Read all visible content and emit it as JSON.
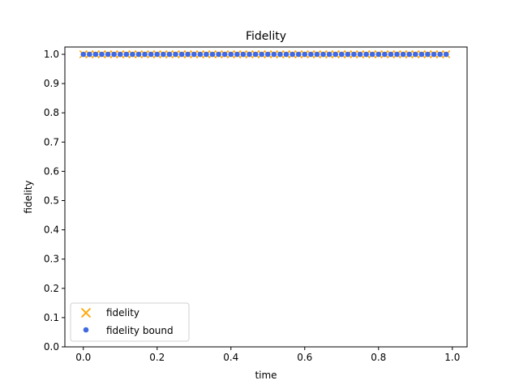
{
  "chart_data": {
    "type": "scatter",
    "title": "Fidelity",
    "xlabel": "time",
    "ylabel": "fidelity",
    "xlim": [
      -0.05,
      1.04
    ],
    "ylim": [
      0.0,
      1.025
    ],
    "x_ticks": [
      0.0,
      0.2,
      0.4,
      0.6,
      0.8,
      1.0
    ],
    "x_tick_labels": [
      "0.0",
      "0.2",
      "0.4",
      "0.6",
      "0.8",
      "1.0"
    ],
    "y_ticks": [
      0.0,
      0.1,
      0.2,
      0.3,
      0.4,
      0.5,
      0.6,
      0.7,
      0.8,
      0.9,
      1.0
    ],
    "y_tick_labels": [
      "0.0",
      "0.1",
      "0.2",
      "0.3",
      "0.4",
      "0.5",
      "0.6",
      "0.7",
      "0.8",
      "0.9",
      "1.0"
    ],
    "grid": false,
    "legend_position": "lower-left",
    "x": [
      0.0,
      0.0167,
      0.0333,
      0.05,
      0.0667,
      0.0833,
      0.1,
      0.1167,
      0.1333,
      0.15,
      0.1667,
      0.1833,
      0.2,
      0.2167,
      0.2333,
      0.25,
      0.2667,
      0.2833,
      0.3,
      0.3167,
      0.3333,
      0.35,
      0.3667,
      0.3833,
      0.4,
      0.4167,
      0.4333,
      0.45,
      0.4667,
      0.4833,
      0.5,
      0.5167,
      0.5333,
      0.55,
      0.5667,
      0.5833,
      0.6,
      0.6167,
      0.6333,
      0.65,
      0.6667,
      0.6833,
      0.7,
      0.7167,
      0.7333,
      0.75,
      0.7667,
      0.7833,
      0.8,
      0.8167,
      0.8333,
      0.85,
      0.8667,
      0.8833,
      0.9,
      0.9167,
      0.9333,
      0.95,
      0.9667,
      0.9833
    ],
    "series": [
      {
        "name": "fidelity",
        "marker": "x",
        "color": "#FFA500",
        "y_constant": 1.0
      },
      {
        "name": "fidelity bound",
        "marker": "o",
        "color": "#4169E1",
        "y_constant": 1.0
      }
    ]
  }
}
